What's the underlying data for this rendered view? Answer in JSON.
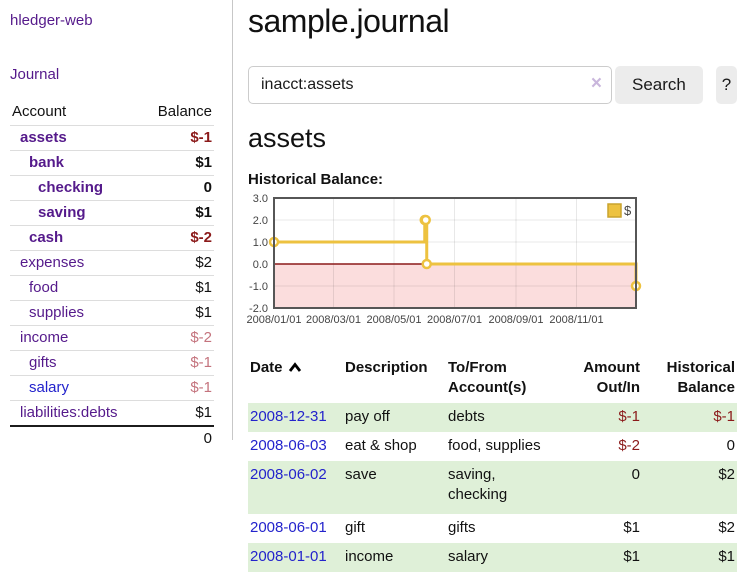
{
  "colors": {
    "accent_purple": "#551a8b",
    "link_blue": "#2323cc",
    "negative_dark": "#8b1a1a",
    "negative_light": "#c4737d",
    "row_green": "#dff0d8",
    "button_gray": "#ececec",
    "chart_gold": "#edc240",
    "chart_gold_border": "#c9a32e",
    "chart_negative_fill": "#fbdddd",
    "chart_zero_line": "#8b1a1a",
    "chart_border": "#565656",
    "chart_text": "#444444"
  },
  "app": {
    "title": "hledger-web"
  },
  "sidebar": {
    "journal_link": "Journal",
    "accounts": {
      "account_header": "Account",
      "balance_header": "Balance",
      "rows": [
        {
          "account": "assets",
          "balance": "$-1",
          "level": 0,
          "bold": true
        },
        {
          "account": "bank",
          "balance": "$1",
          "level": 1,
          "bold": true
        },
        {
          "account": "checking",
          "balance": "0",
          "level": 2,
          "bold": true
        },
        {
          "account": "saving",
          "balance": "$1",
          "level": 2,
          "bold": true
        },
        {
          "account": "cash",
          "balance": "$-2",
          "level": 1,
          "bold": true
        },
        {
          "account": "expenses",
          "balance": "$2",
          "level": 0,
          "bold": false
        },
        {
          "account": "food",
          "balance": "$1",
          "level": 1,
          "bold": false
        },
        {
          "account": "supplies",
          "balance": "$1",
          "level": 1,
          "bold": false
        },
        {
          "account": "income",
          "balance": "$-2",
          "level": 0,
          "bold": false
        },
        {
          "account": "gifts",
          "balance": "$-1",
          "level": 1,
          "bold": false
        },
        {
          "account": "salary",
          "balance": "$-1",
          "level": 1,
          "bold": false,
          "unvisited": true
        },
        {
          "account": "liabilities:debts",
          "balance": "$1",
          "level": 0,
          "bold": false
        }
      ],
      "total": "0"
    }
  },
  "header": {
    "title": "sample.journal"
  },
  "search": {
    "value": "inacct:assets",
    "clear_icon": "×",
    "button_label": "Search",
    "help_label": "?"
  },
  "account_page": {
    "heading": "assets",
    "chart_label": "Historical Balance:"
  },
  "chart_data": {
    "type": "line",
    "style": "steps",
    "series": [
      {
        "name": "$",
        "points": [
          [
            "2008-01-01",
            1
          ],
          [
            "2008-06-01",
            2
          ],
          [
            "2008-06-02",
            2
          ],
          [
            "2008-06-03",
            0
          ],
          [
            "2008-12-31",
            -1
          ]
        ]
      }
    ],
    "xlim": [
      "2008-01-01",
      "2008-12-31"
    ],
    "ylim": [
      -2,
      3
    ],
    "yticks": [
      3,
      2,
      1,
      0,
      -1,
      -2
    ],
    "xticks": [
      "2008/01/01",
      "2008/03/01",
      "2008/05/01",
      "2008/07/01",
      "2008/09/01",
      "2008/11/01"
    ],
    "legend": {
      "label": "$",
      "position": "top-right"
    },
    "grid": true,
    "negative_region_shaded": true
  },
  "register": {
    "headers": [
      {
        "label": "Date",
        "align": "left",
        "sort": "ascending"
      },
      {
        "label": "Description",
        "align": "left"
      },
      {
        "label": "To/From\nAccount(s)",
        "align": "left"
      },
      {
        "label": "Amount\nOut/In",
        "align": "right"
      },
      {
        "label": "Historical\nBalance",
        "align": "right"
      }
    ],
    "rows": [
      {
        "date": "2008-12-31",
        "description": "pay off",
        "to_from": "debts",
        "amount": "$-1",
        "balance": "$-1"
      },
      {
        "date": "2008-06-03",
        "description": "eat & shop",
        "to_from": "food, supplies",
        "amount": "$-2",
        "balance": "0"
      },
      {
        "date": "2008-06-02",
        "description": "save",
        "to_from": "saving,\nchecking",
        "amount": "0",
        "balance": "$2"
      },
      {
        "date": "2008-06-01",
        "description": "gift",
        "to_from": "gifts",
        "amount": "$1",
        "balance": "$2"
      },
      {
        "date": "2008-01-01",
        "description": "income",
        "to_from": "salary",
        "amount": "$1",
        "balance": "$1"
      }
    ]
  }
}
